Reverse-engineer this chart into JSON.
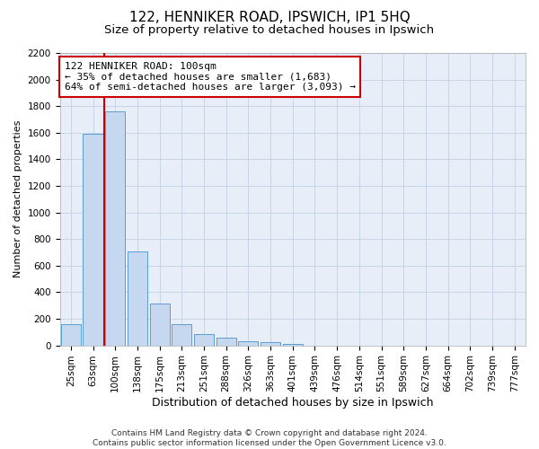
{
  "title": "122, HENNIKER ROAD, IPSWICH, IP1 5HQ",
  "subtitle": "Size of property relative to detached houses in Ipswich",
  "xlabel": "Distribution of detached houses by size in Ipswich",
  "ylabel": "Number of detached properties",
  "footer_line1": "Contains HM Land Registry data © Crown copyright and database right 2024.",
  "footer_line2": "Contains public sector information licensed under the Open Government Licence v3.0.",
  "categories": [
    "25sqm",
    "63sqm",
    "100sqm",
    "138sqm",
    "175sqm",
    "213sqm",
    "251sqm",
    "288sqm",
    "326sqm",
    "363sqm",
    "401sqm",
    "439sqm",
    "476sqm",
    "514sqm",
    "551sqm",
    "589sqm",
    "627sqm",
    "664sqm",
    "702sqm",
    "739sqm",
    "777sqm"
  ],
  "values": [
    160,
    1590,
    1760,
    710,
    315,
    160,
    85,
    55,
    32,
    22,
    14,
    0,
    0,
    0,
    0,
    0,
    0,
    0,
    0,
    0,
    0
  ],
  "bar_color": "#c5d8f0",
  "bar_edge_color": "#5a9ecf",
  "vline_x_index": 2,
  "vline_color": "#cc0000",
  "annotation_line1": "122 HENNIKER ROAD: 100sqm",
  "annotation_line2": "← 35% of detached houses are smaller (1,683)",
  "annotation_line3": "64% of semi-detached houses are larger (3,093) →",
  "annotation_box_color": "#ffffff",
  "annotation_box_edge_color": "#cc0000",
  "ylim": [
    0,
    2200
  ],
  "yticks": [
    0,
    200,
    400,
    600,
    800,
    1000,
    1200,
    1400,
    1600,
    1800,
    2000,
    2200
  ],
  "grid_color": "#c8d4e8",
  "background_color": "#e8eef8",
  "title_fontsize": 11,
  "subtitle_fontsize": 9.5,
  "ylabel_fontsize": 8,
  "xlabel_fontsize": 9,
  "tick_fontsize": 7.5,
  "annotation_fontsize": 8,
  "footer_fontsize": 6.5
}
